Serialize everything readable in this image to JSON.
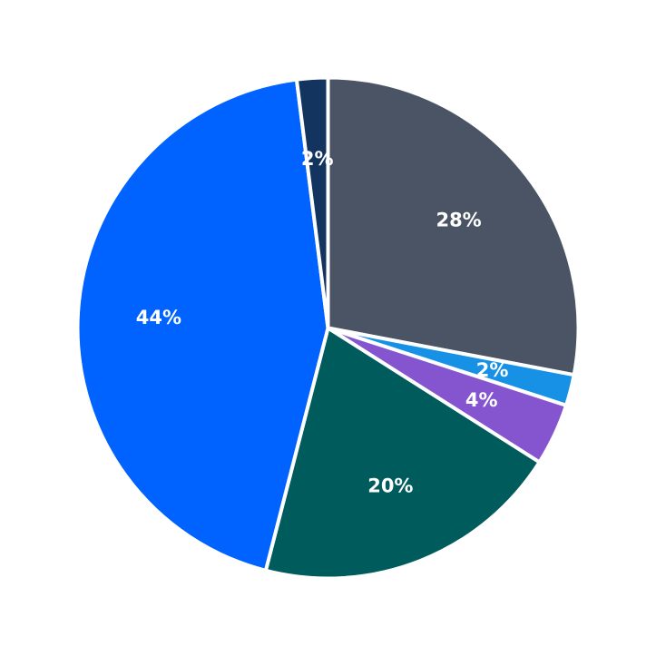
{
  "chart_data": {
    "type": "pie",
    "title": "",
    "legend": "none",
    "start_angle_deg": 90,
    "direction": "clockwise",
    "slices": [
      {
        "label": "",
        "value": 28,
        "display": "28%",
        "color": "#4a5464"
      },
      {
        "label": "",
        "value": 2,
        "display": "2%",
        "color": "#1691e5"
      },
      {
        "label": "",
        "value": 4,
        "display": "4%",
        "color": "#8455ce"
      },
      {
        "label": "",
        "value": 20,
        "display": "20%",
        "color": "#005c5c"
      },
      {
        "label": "",
        "value": 44,
        "display": "44%",
        "color": "#0062ff"
      },
      {
        "label": "",
        "value": 2,
        "display": "2%",
        "color": "#13345f"
      }
    ]
  }
}
